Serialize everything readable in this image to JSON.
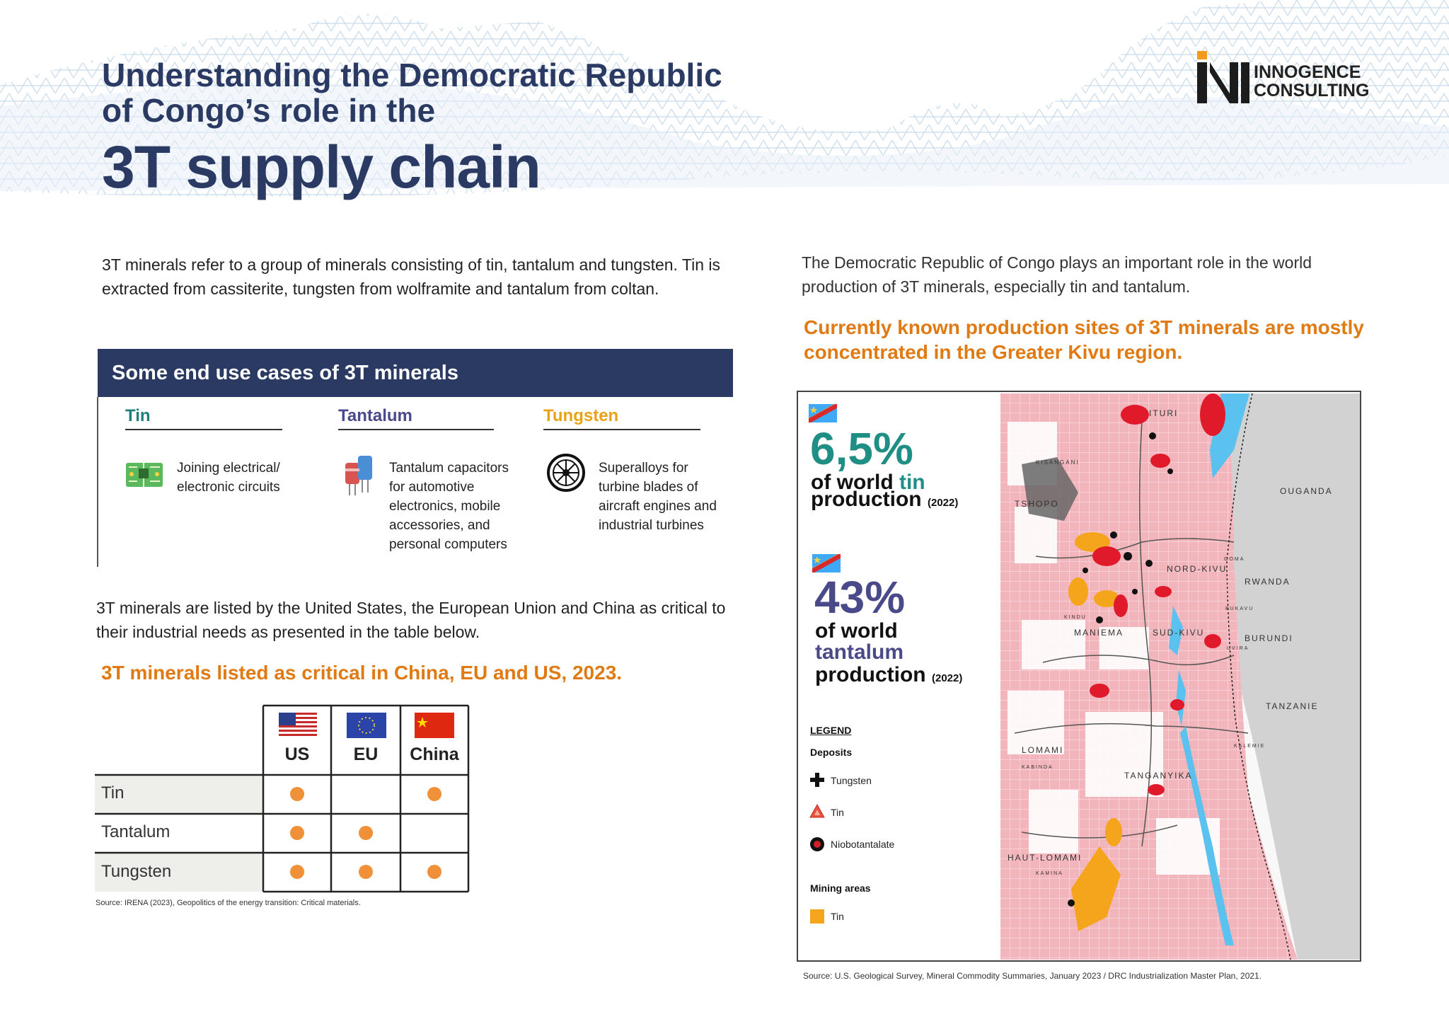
{
  "title": {
    "line1": "Understanding the Democratic Republic",
    "line2": "of Congo’s role in the",
    "big": "3T supply chain"
  },
  "logo": {
    "line1": "INNOGENCE",
    "line2": "CONSULTING"
  },
  "intro": "3T minerals refer to a group of minerals consisting of tin, tantalum and tungsten. Tin is extracted from cassiterite, tungsten from wolframite and tantalum from coltan.",
  "end_use": {
    "title": "Some end use cases of 3T minerals",
    "columns": [
      {
        "name": "Tin",
        "color": "#1f7f7a",
        "icon": "circuit-board-icon",
        "text": "Joining electrical/ electronic circuits"
      },
      {
        "name": "Tantalum",
        "color": "#4a4a8a",
        "icon": "capacitor-icon",
        "text": "Tantalum capacitors for automotive electronics, mobile accessories, and personal computers"
      },
      {
        "name": "Tungsten",
        "color": "#e8a317",
        "icon": "turbine-icon",
        "text": "Superalloys for turbine blades of aircraft engines and industrial turbines"
      }
    ]
  },
  "critical": {
    "intro": "3T minerals are listed by the United States, the European Union and China as critical to their industrial needs as presented in the table below.",
    "heading": "3T minerals listed as critical in China, EU and US, 2023.",
    "columns": [
      "US",
      "EU",
      "China"
    ],
    "rows": [
      {
        "label": "Tin",
        "marks": [
          true,
          false,
          true
        ]
      },
      {
        "label": "Tantalum",
        "marks": [
          true,
          true,
          false
        ]
      },
      {
        "label": "Tungsten",
        "marks": [
          true,
          true,
          true
        ]
      }
    ],
    "source": "Source: IRENA (2023), Geopolitics of the energy transition: Critical materials."
  },
  "right": {
    "intro": "The Democratic Republic of Congo plays an important role in the world production of 3T minerals, especially tin and tantalum.",
    "highlight": "Currently known production sites of 3T minerals are mostly concentrated in the Greater Kivu region.",
    "stats": [
      {
        "value": "6,5%",
        "color": "#1f8f86",
        "line1_a": "of world ",
        "line1_b": "tin",
        "line2": "production",
        "year": "(2022)"
      },
      {
        "value": "43%",
        "color": "#4a4a8a",
        "line1": "of world",
        "line2": "tantalum",
        "line3": "production",
        "year": "(2022)"
      }
    ],
    "legend": {
      "title": "LEGEND",
      "deposits": "Deposits",
      "items": [
        "Tungsten",
        "Tin",
        "Niobotantalate"
      ],
      "mining": "Mining areas",
      "mining_items": [
        "Tin"
      ]
    },
    "map_labels": [
      "ITURI",
      "OUGANDA",
      "TSHOPO",
      "KISANGANI",
      "NORD-KIVU",
      "RWANDA",
      "MANIEMA",
      "SUD-KIVU",
      "BURUNDI",
      "TANZANIE",
      "LOMAMI",
      "KABINDA",
      "TANGANYIKA",
      "HAUT-LOMAMI",
      "KAMINA",
      "GOMA",
      "BUKAVU",
      "UVIRA",
      "KALEMIE",
      "KINDU"
    ],
    "source": "Source: U.S. Geological Survey, Mineral Commodity Summaries, January 2023 / DRC Industrialization Master Plan, 2021."
  },
  "colors": {
    "navy": "#2a3a63",
    "orange": "#e07a14",
    "dot": "#f0913a"
  }
}
